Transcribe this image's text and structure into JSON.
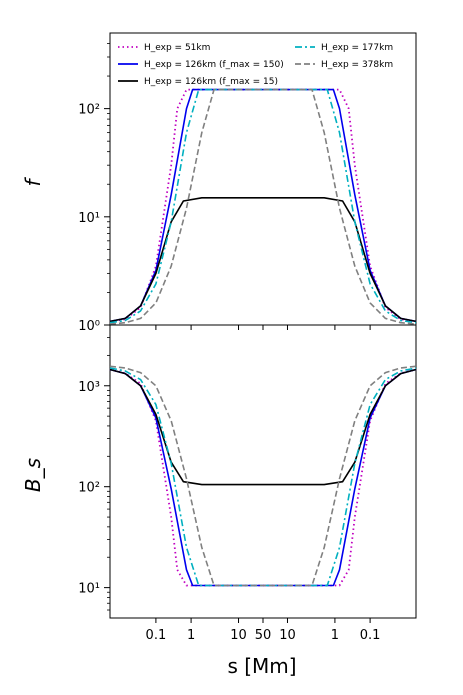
{
  "chart_data": [
    {
      "type": "line",
      "panel": "top",
      "ylabel": "f",
      "yscale": "log",
      "ylim": [
        1,
        500
      ],
      "yticks": [
        {
          "value": 1,
          "label": "10⁰"
        },
        {
          "value": 10,
          "label": "10¹"
        },
        {
          "value": 100,
          "label": "10²"
        }
      ],
      "legend": {
        "placement": "top",
        "entries": [
          {
            "text": "H_exp = 51km",
            "color": "#c000c0",
            "style": "dotted"
          },
          {
            "text": "H_exp = 126km (f_max = 150)",
            "color": "#0000ee",
            "style": "solid"
          },
          {
            "text": "H_exp = 126km (f_max = 15)",
            "color": "#000000",
            "style": "solid"
          },
          {
            "text": "H_exp = 177km",
            "color": "#00b0c0",
            "style": "dashdot"
          },
          {
            "text": "H_exp = 378km",
            "color": "#808080",
            "style": "dashed"
          }
        ]
      },
      "series": [
        {
          "name": "H_exp = 51km",
          "color": "#c000c0",
          "style": "dotted",
          "H": 51,
          "fmax": 150,
          "points": [
            [
              0,
              1.07
            ],
            [
              0.05,
              1.13
            ],
            [
              0.1,
              1.45
            ],
            [
              0.15,
              3.5
            ],
            [
              0.2,
              30
            ],
            [
              0.22,
              100
            ],
            [
              0.25,
              150
            ],
            [
              0.75,
              150
            ],
            [
              0.78,
              100
            ],
            [
              0.8,
              30
            ],
            [
              0.85,
              3.5
            ],
            [
              0.9,
              1.45
            ],
            [
              0.95,
              1.13
            ],
            [
              1,
              1.07
            ]
          ]
        },
        {
          "name": "H_exp = 126km (f_max = 150)",
          "color": "#0000ee",
          "style": "solid",
          "H": 126,
          "fmax": 150,
          "points": [
            [
              0,
              1.08
            ],
            [
              0.05,
              1.15
            ],
            [
              0.1,
              1.5
            ],
            [
              0.15,
              3.2
            ],
            [
              0.2,
              16
            ],
            [
              0.25,
              100
            ],
            [
              0.27,
              150
            ],
            [
              0.73,
              150
            ],
            [
              0.75,
              100
            ],
            [
              0.8,
              16
            ],
            [
              0.85,
              3.2
            ],
            [
              0.9,
              1.5
            ],
            [
              0.95,
              1.15
            ],
            [
              1,
              1.08
            ]
          ]
        },
        {
          "name": "H_exp = 126km (f_max = 15)",
          "color": "#000000",
          "style": "solid",
          "H": 126,
          "fmax": 15,
          "points": [
            [
              0,
              1.08
            ],
            [
              0.05,
              1.15
            ],
            [
              0.1,
              1.5
            ],
            [
              0.15,
              3.0
            ],
            [
              0.2,
              9
            ],
            [
              0.24,
              14
            ],
            [
              0.3,
              15
            ],
            [
              0.7,
              15
            ],
            [
              0.76,
              14
            ],
            [
              0.8,
              9
            ],
            [
              0.85,
              3.0
            ],
            [
              0.9,
              1.5
            ],
            [
              0.95,
              1.15
            ],
            [
              1,
              1.08
            ]
          ]
        },
        {
          "name": "H_exp = 177km",
          "color": "#00b0c0",
          "style": "dashdot",
          "H": 177,
          "fmax": 150,
          "points": [
            [
              0,
              1.05
            ],
            [
              0.05,
              1.1
            ],
            [
              0.1,
              1.35
            ],
            [
              0.15,
              2.4
            ],
            [
              0.2,
              9
            ],
            [
              0.25,
              60
            ],
            [
              0.29,
              150
            ],
            [
              0.71,
              150
            ],
            [
              0.75,
              60
            ],
            [
              0.8,
              9
            ],
            [
              0.85,
              2.4
            ],
            [
              0.9,
              1.35
            ],
            [
              0.95,
              1.1
            ],
            [
              1,
              1.05
            ]
          ]
        },
        {
          "name": "H_exp = 378km",
          "color": "#808080",
          "style": "dashed",
          "H": 378,
          "fmax": 150,
          "points": [
            [
              0,
              1.02
            ],
            [
              0.05,
              1.05
            ],
            [
              0.1,
              1.15
            ],
            [
              0.15,
              1.6
            ],
            [
              0.2,
              3.5
            ],
            [
              0.25,
              12
            ],
            [
              0.3,
              60
            ],
            [
              0.34,
              150
            ],
            [
              0.66,
              150
            ],
            [
              0.7,
              60
            ],
            [
              0.75,
              12
            ],
            [
              0.8,
              3.5
            ],
            [
              0.85,
              1.6
            ],
            [
              0.9,
              1.15
            ],
            [
              0.95,
              1.05
            ],
            [
              1,
              1.02
            ]
          ]
        }
      ]
    },
    {
      "type": "line",
      "panel": "bottom",
      "ylabel": "B_s",
      "xlabel": "s [Mm]",
      "yscale": "log",
      "ylim": [
        5,
        4000
      ],
      "yticks": [
        {
          "value": 10,
          "label": "10¹"
        },
        {
          "value": 100,
          "label": "10²"
        },
        {
          "value": 1000,
          "label": "10³"
        }
      ],
      "xticks": [
        "0.1",
        "1",
        "10",
        "50",
        "10",
        "1",
        "0.1"
      ],
      "series": [
        {
          "name": "H_exp = 51km",
          "color": "#c000c0",
          "style": "dotted",
          "H": 51,
          "fmax": 150,
          "points": [
            [
              0,
              1450
            ],
            [
              0.05,
              1330
            ],
            [
              0.1,
              1050
            ],
            [
              0.15,
              450
            ],
            [
              0.2,
              50
            ],
            [
              0.22,
              15
            ],
            [
              0.25,
              10.5
            ],
            [
              0.75,
              10.5
            ],
            [
              0.78,
              15
            ],
            [
              0.8,
              50
            ],
            [
              0.85,
              450
            ],
            [
              0.9,
              1050
            ],
            [
              0.95,
              1330
            ],
            [
              1,
              1450
            ]
          ]
        },
        {
          "name": "H_exp = 126km (f_max = 150)",
          "color": "#0000ee",
          "style": "solid",
          "H": 126,
          "fmax": 150,
          "points": [
            [
              0,
              1450
            ],
            [
              0.05,
              1320
            ],
            [
              0.1,
              1000
            ],
            [
              0.15,
              480
            ],
            [
              0.2,
              95
            ],
            [
              0.25,
              15
            ],
            [
              0.27,
              10.5
            ],
            [
              0.73,
              10.5
            ],
            [
              0.75,
              15
            ],
            [
              0.8,
              95
            ],
            [
              0.85,
              480
            ],
            [
              0.9,
              1000
            ],
            [
              0.95,
              1320
            ],
            [
              1,
              1450
            ]
          ]
        },
        {
          "name": "H_exp = 126km (f_max = 15)",
          "color": "#000000",
          "style": "solid",
          "H": 126,
          "fmax": 15,
          "points": [
            [
              0,
              1450
            ],
            [
              0.05,
              1320
            ],
            [
              0.1,
              1000
            ],
            [
              0.15,
              520
            ],
            [
              0.2,
              175
            ],
            [
              0.24,
              112
            ],
            [
              0.3,
              105
            ],
            [
              0.7,
              105
            ],
            [
              0.76,
              112
            ],
            [
              0.8,
              175
            ],
            [
              0.85,
              520
            ],
            [
              0.9,
              1000
            ],
            [
              0.95,
              1320
            ],
            [
              1,
              1450
            ]
          ]
        },
        {
          "name": "H_exp = 177km",
          "color": "#00b0c0",
          "style": "dashdot",
          "H": 177,
          "fmax": 150,
          "points": [
            [
              0,
              1500
            ],
            [
              0.05,
              1400
            ],
            [
              0.1,
              1150
            ],
            [
              0.15,
              650
            ],
            [
              0.2,
              170
            ],
            [
              0.25,
              25
            ],
            [
              0.29,
              10.5
            ],
            [
              0.71,
              10.5
            ],
            [
              0.75,
              25
            ],
            [
              0.8,
              170
            ],
            [
              0.85,
              650
            ],
            [
              0.9,
              1150
            ],
            [
              0.95,
              1400
            ],
            [
              1,
              1500
            ]
          ]
        },
        {
          "name": "H_exp = 378km",
          "color": "#808080",
          "style": "dashed",
          "H": 378,
          "fmax": 150,
          "points": [
            [
              0,
              1560
            ],
            [
              0.05,
              1500
            ],
            [
              0.1,
              1350
            ],
            [
              0.15,
              1000
            ],
            [
              0.2,
              450
            ],
            [
              0.25,
              120
            ],
            [
              0.3,
              25
            ],
            [
              0.34,
              10.5
            ],
            [
              0.66,
              10.5
            ],
            [
              0.7,
              25
            ],
            [
              0.75,
              120
            ],
            [
              0.8,
              450
            ],
            [
              0.85,
              1000
            ],
            [
              0.9,
              1350
            ],
            [
              0.95,
              1500
            ],
            [
              1,
              1560
            ]
          ]
        }
      ]
    }
  ]
}
